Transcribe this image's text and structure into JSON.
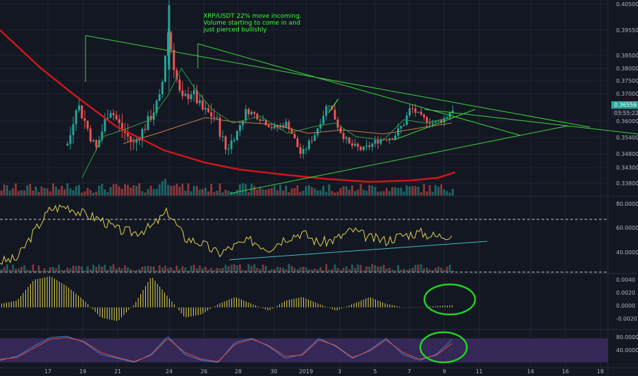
{
  "colors": {
    "background": "#131722",
    "grid": "#1f2433",
    "up": "#26a69a",
    "down": "#ef5350",
    "trend": "#3fd63f",
    "ma_long": "#d0161a",
    "ma_short": "#2ea043",
    "ma_mid": "#c87d4a",
    "rsi": "#e3d54b",
    "rsi_trend": "#3ec1c5",
    "macd": "#e3d54b",
    "stoch_k": "#3d7bd9",
    "stoch_d": "#e0523a",
    "stoch_band": "#3a2a5c",
    "circle": "#22d322",
    "current_price_bg": "#26a69a"
  },
  "annotation": {
    "line1": "XRP/USDT 22% move incoming.",
    "line2": "Volume starting to come in and",
    "line3": "just pierced bullishly"
  },
  "price_axis": {
    "ticks": [
      "0.40500",
      "0.39550",
      "0.38500",
      "0.38000",
      "0.37500",
      "0.37000",
      "0.36000",
      "0.35400",
      "0.34800",
      "0.34300",
      "0.33800"
    ],
    "current_price": "0.36556",
    "countdown": "03:55:22"
  },
  "rsi_axis": {
    "ticks": [
      "80.0000",
      "60.0000",
      "40.0000"
    ]
  },
  "macd_axis": {
    "ticks": [
      "0.0040",
      "0.0020",
      "0.0000",
      "-0.0020"
    ]
  },
  "stoch_axis": {
    "ticks": [
      "80.0000",
      "40.0000"
    ]
  },
  "x_axis": {
    "ticks": [
      "17",
      "19",
      "21",
      "24",
      "26",
      "28",
      "30",
      "2019",
      "3",
      "5",
      "7",
      "9",
      "11",
      "14",
      "16",
      "18"
    ]
  },
  "chart_data": [
    {
      "type": "candlestick",
      "pair": "XRP/USDT",
      "yrange": [
        0.333,
        0.406
      ],
      "candles_shape": "descending triangle into symmetrical wedge; spike to ~0.405 near day 24, consolidation 0.345–0.372 through early January",
      "current_price": 0.36556
    },
    {
      "type": "line",
      "series": [
        {
          "values": [
            38,
            40,
            60,
            78,
            80,
            74,
            70,
            62,
            60,
            64,
            76,
            56,
            52,
            44,
            50,
            54,
            48,
            56,
            60,
            52,
            55,
            62,
            56,
            54,
            58,
            60,
            57,
            59
          ]
        }
      ],
      "yrange": [
        30,
        85
      ],
      "levels": [
        70,
        30
      ]
    },
    {
      "type": "bar",
      "series": [
        {
          "values": [
            0.0005,
            0.001,
            0.004,
            0.0045,
            0.003,
            0.001,
            -0.0015,
            -0.002,
            0.0005,
            0.0045,
            0.0015,
            -0.0015,
            -0.001,
            0.0005,
            0.0015,
            0.0005,
            -0.0005,
            0.001,
            0.0015,
            0.0005,
            -0.0005,
            0.0005,
            0.0015,
            0.0005,
            0.0,
            0.0,
            0.0002,
            0.0003
          ]
        }
      ],
      "yrange": [
        -0.003,
        0.0045
      ]
    },
    {
      "type": "line",
      "series": [
        {
          "values": [
            25,
            35,
            60,
            82,
            85,
            70,
            40,
            30,
            20,
            40,
            85,
            40,
            25,
            20,
            70,
            80,
            60,
            30,
            40,
            80,
            60,
            30,
            50,
            80,
            40,
            25,
            40,
            80
          ]
        },
        {
          "values": [
            28,
            32,
            55,
            78,
            82,
            72,
            45,
            32,
            22,
            38,
            80,
            45,
            28,
            22,
            65,
            78,
            62,
            35,
            38,
            76,
            62,
            32,
            48,
            76,
            45,
            28,
            38,
            70
          ]
        }
      ],
      "yrange": [
        10,
        95
      ],
      "levels": [
        80,
        20
      ]
    }
  ]
}
